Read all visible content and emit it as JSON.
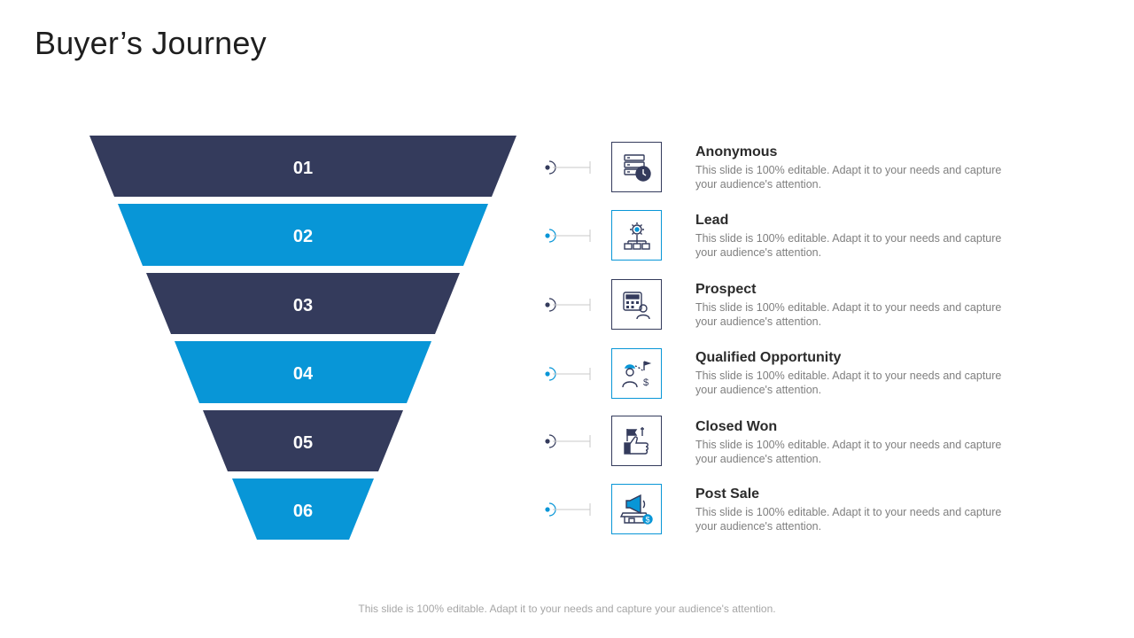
{
  "title": "Buyer’s Journey",
  "colors": {
    "dark": "#343b5c",
    "blue": "#0896d7",
    "text": "#2b2b2b",
    "muted": "#7f7f7f"
  },
  "steps": [
    {
      "number": "01",
      "title": "Anonymous",
      "desc": "This slide is 100% editable. Adapt it to your needs and capture your audience's attention.",
      "icon": "server-clock-icon",
      "color": "dark"
    },
    {
      "number": "02",
      "title": "Lead",
      "desc": "This slide is 100% editable. Adapt it to your needs and capture your audience's attention.",
      "icon": "gear-network-icon",
      "color": "blue"
    },
    {
      "number": "03",
      "title": "Prospect",
      "desc": "This slide is 100% editable. Adapt it to your needs and capture your audience's attention.",
      "icon": "calculator-user-icon",
      "color": "dark"
    },
    {
      "number": "04",
      "title": "Qualified Opportunity",
      "desc": "This slide is 100% editable. Adapt it to your needs and capture your audience's attention.",
      "icon": "person-path-flag-icon",
      "color": "blue"
    },
    {
      "number": "05",
      "title": "Closed Won",
      "desc": "This slide is 100% editable. Adapt it to your needs and capture your audience's attention.",
      "icon": "thumbs-up-flag-icon",
      "color": "dark"
    },
    {
      "number": "06",
      "title": "Post Sale",
      "desc": "This slide is 100% editable. Adapt it to your needs and capture your audience's attention.",
      "icon": "megaphone-shop-icon",
      "color": "blue"
    }
  ],
  "footer": "This slide is 100% editable. Adapt it to your needs and capture your audience's attention."
}
